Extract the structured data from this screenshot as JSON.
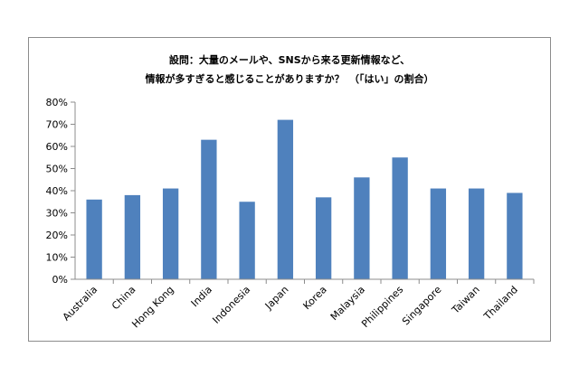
{
  "chart_data": {
    "type": "bar",
    "title_lines": [
      "設問：大量のメールや、SNSから来る更新情報など、",
      "情報が多すぎると感じることがありますか？　（「はい」の割合）"
    ],
    "categories": [
      "Australia",
      "China",
      "Hong Kong",
      "India",
      "Indonesia",
      "Japan",
      "Korea",
      "Malaysia",
      "Philippines",
      "Singapore",
      "Taiwan",
      "Thailand"
    ],
    "values": [
      36,
      38,
      41,
      63,
      35,
      72,
      37,
      46,
      55,
      41,
      41,
      39
    ],
    "ylim": [
      0,
      80
    ],
    "yticks": [
      0,
      10,
      20,
      30,
      40,
      50,
      60,
      70,
      80
    ],
    "ytick_labels": [
      "0%",
      "10%",
      "20%",
      "30%",
      "40%",
      "50%",
      "60%",
      "70%",
      "80%"
    ],
    "bar_color": "#4f81bd",
    "grid": false,
    "legend": "none"
  }
}
